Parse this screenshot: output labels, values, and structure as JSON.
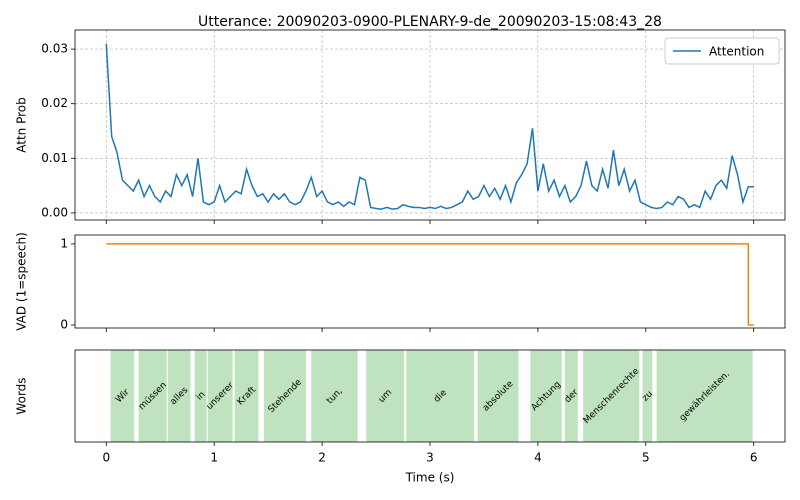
{
  "chart_data": [
    {
      "type": "line",
      "title": "Utterance: 20090203-0900-PLENARY-9-de_20090203-15:08:43_28",
      "ylabel": "Attn Prob",
      "x": [
        0,
        0.05,
        0.1,
        0.15,
        0.2,
        0.25,
        0.3,
        0.35,
        0.4,
        0.45,
        0.5,
        0.55,
        0.6,
        0.65,
        0.7,
        0.75,
        0.8,
        0.85,
        0.9,
        0.95,
        1,
        1.05,
        1.1,
        1.15,
        1.2,
        1.25,
        1.3,
        1.35,
        1.4,
        1.45,
        1.5,
        1.55,
        1.6,
        1.65,
        1.7,
        1.75,
        1.8,
        1.85,
        1.9,
        1.95,
        2,
        2.05,
        2.1,
        2.15,
        2.2,
        2.25,
        2.3,
        2.35,
        2.4,
        2.45,
        2.5,
        2.55,
        2.6,
        2.65,
        2.7,
        2.75,
        2.8,
        2.85,
        2.9,
        2.95,
        3,
        3.05,
        3.1,
        3.15,
        3.2,
        3.25,
        3.3,
        3.35,
        3.4,
        3.45,
        3.5,
        3.55,
        3.6,
        3.65,
        3.7,
        3.75,
        3.8,
        3.85,
        3.9,
        3.95,
        4,
        4.05,
        4.1,
        4.15,
        4.2,
        4.25,
        4.3,
        4.35,
        4.4,
        4.45,
        4.5,
        4.55,
        4.6,
        4.65,
        4.7,
        4.75,
        4.8,
        4.85,
        4.9,
        4.95,
        5,
        5.05,
        5.1,
        5.15,
        5.2,
        5.25,
        5.3,
        5.35,
        5.4,
        5.45,
        5.5,
        5.55,
        5.6,
        5.65,
        5.7,
        5.75,
        5.8,
        5.85,
        5.9,
        5.95,
        6
      ],
      "series": [
        {
          "name": "Attention",
          "color": "#1f77b4",
          "values": [
            0.031,
            0.014,
            0.011,
            0.006,
            0.005,
            0.004,
            0.006,
            0.003,
            0.005,
            0.003,
            0.002,
            0.004,
            0.003,
            0.007,
            0.005,
            0.007,
            0.003,
            0.01,
            0.002,
            0.0015,
            0.002,
            0.005,
            0.002,
            0.003,
            0.004,
            0.0035,
            0.008,
            0.005,
            0.003,
            0.0035,
            0.002,
            0.0035,
            0.0025,
            0.0035,
            0.002,
            0.0015,
            0.002,
            0.004,
            0.0065,
            0.003,
            0.004,
            0.002,
            0.0015,
            0.002,
            0.0012,
            0.002,
            0.0015,
            0.0065,
            0.006,
            0.001,
            0.0008,
            0.0007,
            0.001,
            0.0007,
            0.0008,
            0.0015,
            0.0012,
            0.001,
            0.001,
            0.0008,
            0.001,
            0.0008,
            0.0012,
            0.0008,
            0.001,
            0.0015,
            0.002,
            0.004,
            0.0025,
            0.003,
            0.005,
            0.003,
            0.0045,
            0.0025,
            0.005,
            0.002,
            0.0055,
            0.007,
            0.009,
            0.0155,
            0.004,
            0.009,
            0.004,
            0.006,
            0.003,
            0.005,
            0.002,
            0.003,
            0.005,
            0.0095,
            0.005,
            0.004,
            0.008,
            0.0045,
            0.0115,
            0.005,
            0.008,
            0.004,
            0.006,
            0.002,
            0.0015,
            0.001,
            0.0008,
            0.001,
            0.002,
            0.0015,
            0.003,
            0.0025,
            0.001,
            0.0015,
            0.001,
            0.004,
            0.0025,
            0.005,
            0.006,
            0.0045,
            0.0105,
            0.007,
            0.002,
            0.0048,
            0.0048
          ]
        }
      ],
      "xlim": [
        -0.29,
        6.29
      ],
      "ylim": [
        -0.0013,
        0.0335
      ],
      "yticks": [
        {
          "value": 0,
          "label": "0.00"
        },
        0.01,
        0.02,
        0.03
      ],
      "grid": true,
      "legend": "upper right"
    },
    {
      "type": "line",
      "ylabel": "VAD (1=speech)",
      "x": [
        0,
        5.95,
        5.95,
        6
      ],
      "series": [
        {
          "color": "#ff7f0e",
          "values": [
            1,
            1,
            0,
            0
          ]
        }
      ],
      "xlim": [
        -0.29,
        6.29
      ],
      "ylim": [
        -0.037,
        1.11
      ],
      "yticks": [
        0,
        1
      ],
      "grid": false
    },
    {
      "type": "span",
      "ylabel": "Words",
      "xlabel": "Time (s)",
      "categories": [
        "Wir",
        "müssen",
        "alles",
        "in",
        "unserer",
        "Kraft",
        "Stehende",
        "tun,",
        "um",
        "die",
        "absolute",
        "Achtung",
        "der",
        "Menschenrechte",
        "zu",
        "gewährleisten."
      ],
      "starts": [
        0.04,
        0.3,
        0.57,
        0.82,
        0.94,
        1.19,
        1.46,
        1.9,
        2.41,
        2.78,
        3.44,
        3.93,
        4.25,
        4.42,
        4.97,
        5.1
      ],
      "ends": [
        0.26,
        0.56,
        0.78,
        0.93,
        1.17,
        1.41,
        1.85,
        2.33,
        2.76,
        3.41,
        3.82,
        4.22,
        4.37,
        4.94,
        5.06,
        5.99
      ],
      "color": "#2ca02c",
      "xlim": [
        -0.29,
        6.29
      ],
      "xticks": [
        0,
        1,
        2,
        3,
        4,
        5,
        6
      ]
    }
  ]
}
